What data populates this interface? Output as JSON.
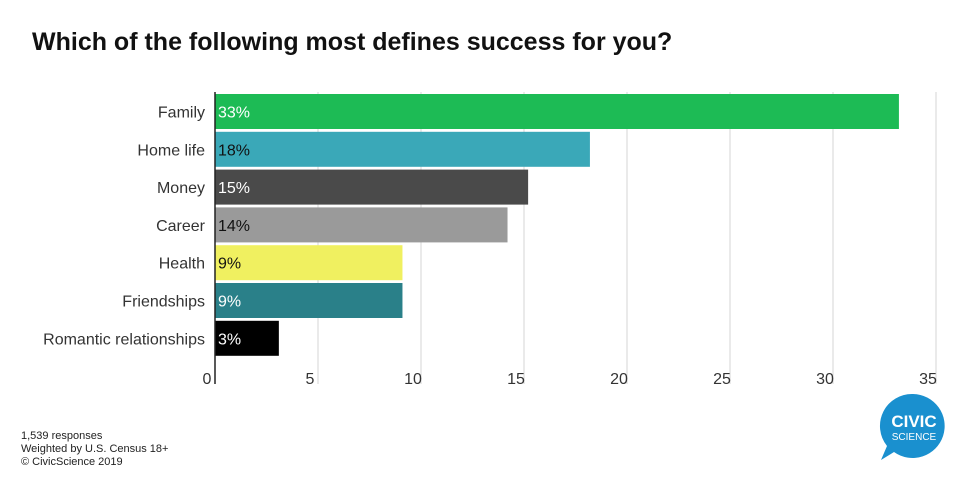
{
  "title": "Which of the following most defines success for you?",
  "footer": {
    "responses": "1,539 responses",
    "weighting": "Weighted by U.S. Census 18+",
    "copyright": "© CivicScience 2019"
  },
  "logo": {
    "line1": "CIVIC",
    "line2": "SCIENCE",
    "color": "#1a90cf"
  },
  "chart_data": {
    "type": "bar",
    "orientation": "horizontal",
    "categories": [
      "Family",
      "Home life",
      "Money",
      "Career",
      "Health",
      "Friendships",
      "Romantic relationships"
    ],
    "values": [
      33.2,
      18.2,
      15.2,
      14.2,
      9.1,
      9.1,
      3.1
    ],
    "labels": [
      "33%",
      "18%",
      "15%",
      "14%",
      "9%",
      "9%",
      "3%"
    ],
    "colors": [
      "#1dbb55",
      "#3aa8b8",
      "#4a4a4a",
      "#9a9a9a",
      "#f0f060",
      "#2a8089",
      "#000000"
    ],
    "label_colors": [
      "#ffffff",
      "#111111",
      "#ffffff",
      "#111111",
      "#111111",
      "#ffffff",
      "#ffffff"
    ],
    "xlim": [
      0,
      35
    ],
    "xticks": [
      0,
      5,
      10,
      15,
      20,
      25,
      30,
      35
    ],
    "xlabel": "",
    "ylabel": "",
    "grid": true,
    "title": "Which of the following most defines success for you?"
  }
}
